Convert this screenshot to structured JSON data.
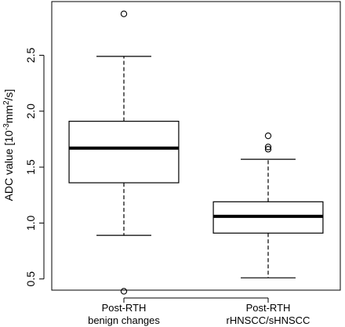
{
  "chart_data": {
    "type": "boxplot",
    "title": "",
    "xlabel": "",
    "ylabel_main": "ADC value [10",
    "ylabel_exp1": "-3",
    "ylabel_mid": "mm",
    "ylabel_exp2": "2",
    "ylabel_end": "/s]",
    "ylim": [
      0.4,
      2.98
    ],
    "yticks": [
      0.5,
      1.0,
      1.5,
      2.0,
      2.5
    ],
    "ytick_labels": [
      "0.5",
      "1.0",
      "1.5",
      "2.0",
      "2.5"
    ],
    "grid": false,
    "groups": [
      {
        "label_line1": "Post-RTH",
        "label_line2": "benign changes",
        "whisker_low": 0.89,
        "q1": 1.36,
        "median": 1.67,
        "q3": 1.91,
        "whisker_high": 2.49,
        "outliers": [
          2.87,
          0.39
        ]
      },
      {
        "label_line1": "Post-RTH",
        "label_line2": "rHNSCC/sHNSCC",
        "whisker_low": 0.51,
        "q1": 0.91,
        "median": 1.06,
        "q3": 1.19,
        "whisker_high": 1.57,
        "outliers": [
          1.78,
          1.68,
          1.66
        ]
      }
    ]
  }
}
